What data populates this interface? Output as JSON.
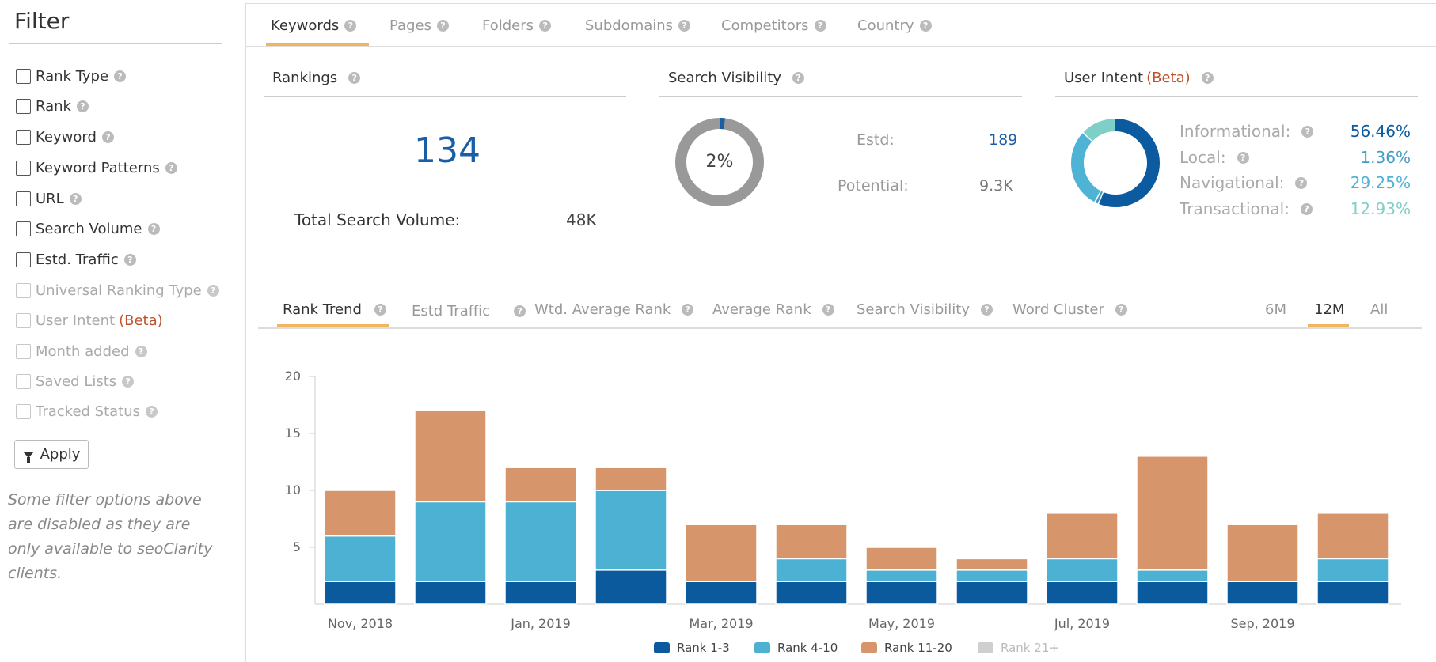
{
  "sidebar": {
    "title": "Filter",
    "items": [
      {
        "label": "Rank Type",
        "disabled": false
      },
      {
        "label": "Rank",
        "disabled": false
      },
      {
        "label": "Keyword",
        "disabled": false
      },
      {
        "label": "Keyword Patterns",
        "disabled": false
      },
      {
        "label": "URL",
        "disabled": false
      },
      {
        "label": "Search Volume",
        "disabled": false
      },
      {
        "label": "Estd. Traffic",
        "disabled": false
      },
      {
        "label": "Universal Ranking Type",
        "disabled": true
      },
      {
        "label": "User Intent",
        "beta": "(Beta)",
        "disabled": true
      },
      {
        "label": "Month added",
        "disabled": true
      },
      {
        "label": "Saved Lists",
        "disabled": true
      },
      {
        "label": "Tracked Status",
        "disabled": true
      }
    ],
    "apply_label": "Apply",
    "note": "Some filter options above are disabled as they are only available to seoClarity clients."
  },
  "top_tabs": [
    "Keywords",
    "Pages",
    "Folders",
    "Subdomains",
    "Competitors",
    "Country"
  ],
  "help_glyph": "?",
  "rankings": {
    "title": "Rankings",
    "count": "134",
    "total_search_volume_label": "Total Search Volume:",
    "total_search_volume": "48K"
  },
  "search_visibility": {
    "title": "Search Visibility",
    "percent_label": "2%",
    "percent": 2,
    "estd_label": "Estd:",
    "estd_value": "189",
    "potential_label": "Potential:",
    "potential_value": "9.3K"
  },
  "user_intent": {
    "title": "User Intent",
    "beta": "(Beta)",
    "rows": [
      {
        "label": "Informational:",
        "value": "56.46%",
        "pct": 56.46,
        "color": "#0c5aa0"
      },
      {
        "label": "Local:",
        "value": "1.36%",
        "pct": 1.36,
        "color": "#3f9ec4"
      },
      {
        "label": "Navigational:",
        "value": "29.25%",
        "pct": 29.25,
        "color": "#4fb3d6"
      },
      {
        "label": "Transactional:",
        "value": "12.93%",
        "pct": 12.93,
        "color": "#7fcfc9"
      }
    ]
  },
  "chart_tabs": [
    "Rank Trend",
    "Estd Traffic",
    "Wtd. Average Rank",
    "Average Rank",
    "Search Visibility",
    "Word Cluster"
  ],
  "range_tabs": [
    "6M",
    "12M",
    "All"
  ],
  "chart_data": {
    "type": "bar",
    "stacked": true,
    "categories": [
      "Nov, 2018",
      "Dec, 2018",
      "Jan, 2019",
      "Feb, 2019",
      "Mar, 2019",
      "Apr, 2019",
      "May, 2019",
      "Jun, 2019",
      "Jul, 2019",
      "Aug, 2019",
      "Sep, 2019",
      "Oct, 2019"
    ],
    "tick_labels": [
      "Nov, 2018",
      "",
      "Jan, 2019",
      "",
      "Mar, 2019",
      "",
      "May, 2019",
      "",
      "Jul, 2019",
      "",
      "Sep, 2019",
      ""
    ],
    "series": [
      {
        "name": "Rank 1-3",
        "color": "#0b5a9e",
        "values": [
          2,
          2,
          2,
          3,
          2,
          2,
          2,
          2,
          2,
          2,
          2,
          2
        ]
      },
      {
        "name": "Rank 4-10",
        "color": "#4db1d4",
        "values": [
          4,
          7,
          7,
          7,
          0,
          2,
          1,
          1,
          2,
          1,
          0,
          2
        ]
      },
      {
        "name": "Rank 11-20",
        "color": "#d6956b",
        "values": [
          4,
          8,
          3,
          2,
          5,
          3,
          2,
          1,
          4,
          10,
          5,
          4
        ]
      },
      {
        "name": "Rank 21+",
        "color": "#cfcfcf",
        "values": [
          0,
          0,
          0,
          0,
          0,
          0,
          0,
          0,
          0,
          0,
          0,
          0
        ],
        "disabled": true
      }
    ],
    "ylim": [
      0,
      20
    ],
    "yticks": [
      5,
      10,
      15,
      20
    ],
    "legend_position": "bottom"
  }
}
